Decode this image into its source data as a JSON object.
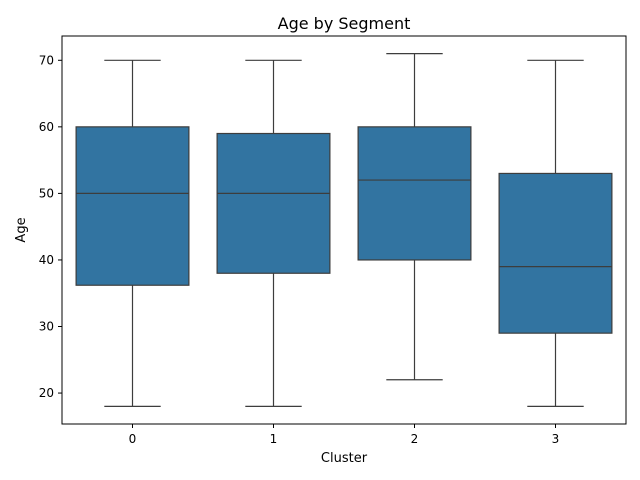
{
  "chart_data": {
    "type": "box",
    "title": "Age by Segment",
    "xlabel": "Cluster",
    "ylabel": "Age",
    "categories": [
      "0",
      "1",
      "2",
      "3"
    ],
    "boxes": [
      {
        "category": "0",
        "min": 18,
        "q1": 36.2,
        "median": 50,
        "q3": 60,
        "max": 70
      },
      {
        "category": "1",
        "min": 18,
        "q1": 38,
        "median": 50,
        "q3": 59,
        "max": 70
      },
      {
        "category": "2",
        "min": 22,
        "q1": 40,
        "median": 52,
        "q3": 60,
        "max": 71
      },
      {
        "category": "3",
        "min": 18,
        "q1": 29,
        "median": 39,
        "q3": 53,
        "max": 70
      }
    ],
    "ylim": [
      15.35,
      73.65
    ],
    "yticks": [
      20,
      30,
      40,
      50,
      60,
      70
    ],
    "ytick_labels": [
      "20",
      "30",
      "40",
      "50",
      "60",
      "70"
    ],
    "grid": false,
    "box_color": "#3274a1",
    "line_color": "#3d3d3d"
  }
}
